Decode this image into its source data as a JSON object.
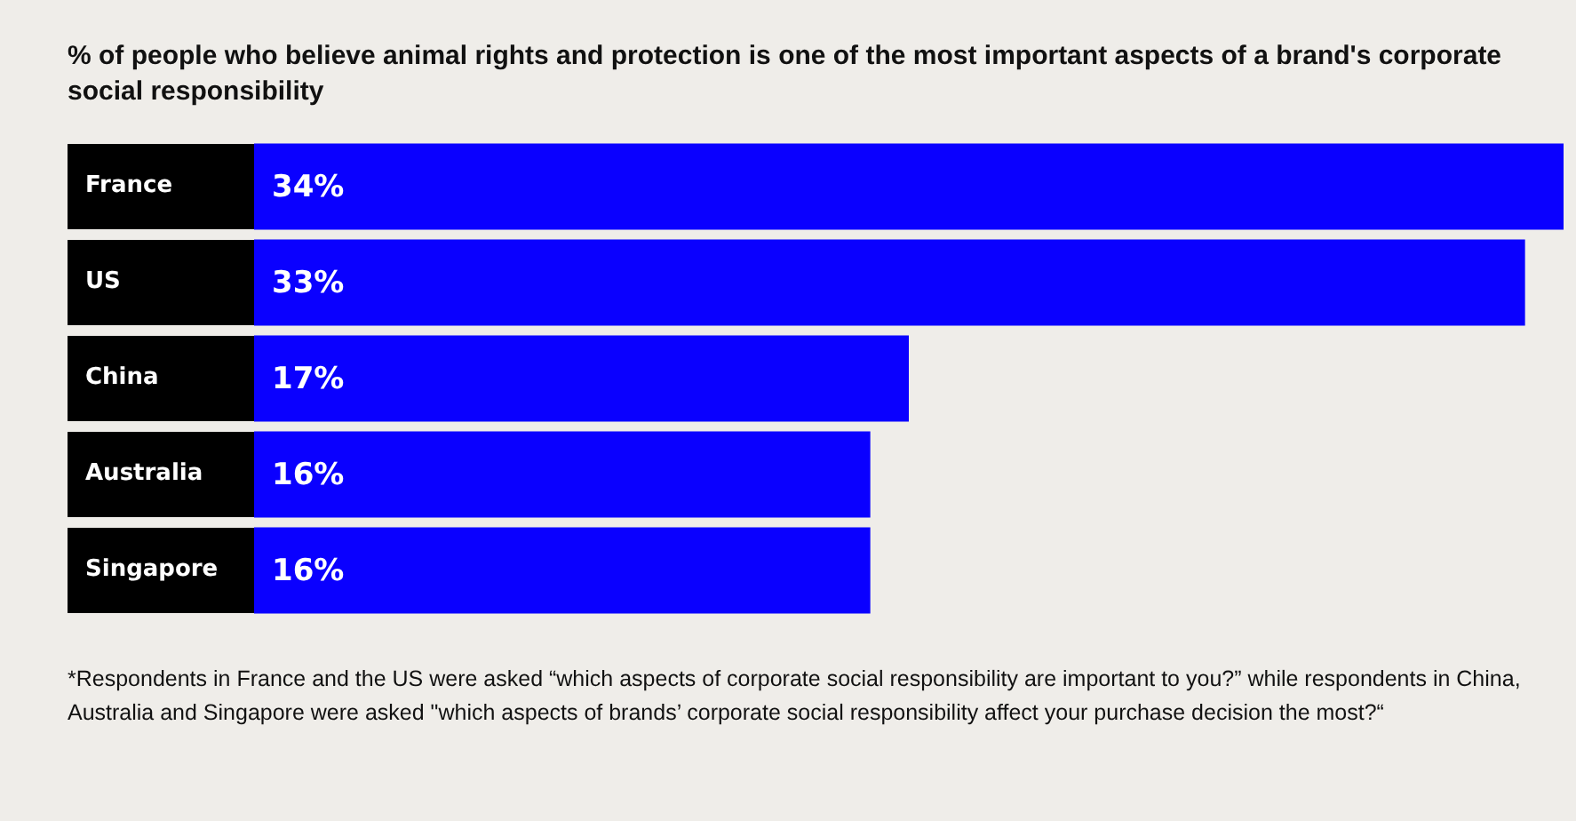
{
  "chart_data": {
    "type": "bar",
    "orientation": "horizontal",
    "title": "% of people who believe animal rights and protection is one of the most important aspects of a brand's corporate social responsibility",
    "categories": [
      "France",
      "US",
      "China",
      "Australia",
      "Singapore"
    ],
    "values": [
      34,
      33,
      17,
      16,
      16
    ],
    "color": "#0a00ff",
    "data_labels": true,
    "value_labels": [
      "34%",
      "33%",
      "17%",
      "16%",
      "16%"
    ],
    "annotations": [
      "*Respondents in France and the US were asked “which aspects of corporate social responsibility are important to you?” while respondents in China, Australia and Singapore were asked \"which aspects of brands’ corporate social responsibility affect your purchase decision the most?“"
    ]
  }
}
